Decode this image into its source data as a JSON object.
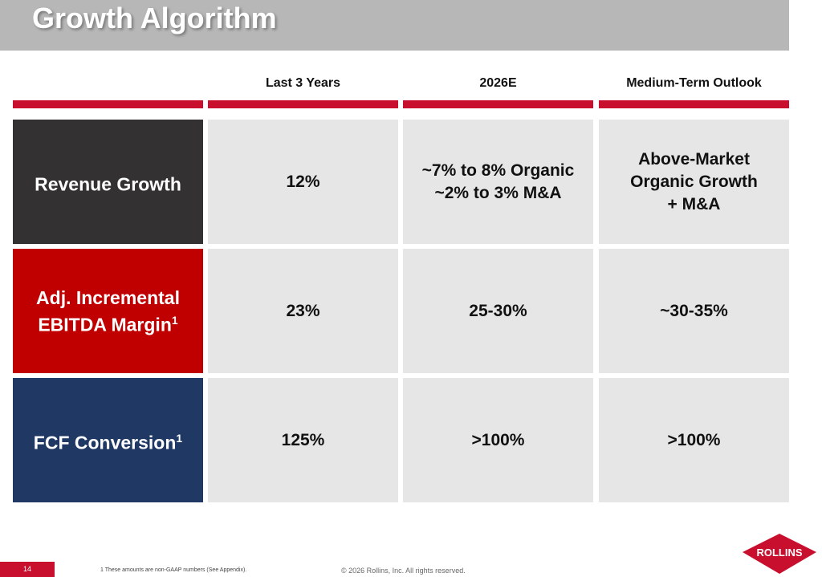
{
  "title": "Growth Algorithm",
  "columns": [
    "Last 3 Years",
    "2026E",
    "Medium-Term Outlook"
  ],
  "rows": [
    {
      "label": "Revenue Growth",
      "sup": "",
      "color": "#333132",
      "values": [
        [
          "12%"
        ],
        [
          "~7% to 8% Organic",
          "~2% to 3% M&A"
        ],
        [
          "Above-Market",
          "Organic Growth",
          "+ M&A"
        ]
      ]
    },
    {
      "label": "Adj. Incremental EBITDA Margin",
      "sup": "1",
      "color": "#c00000",
      "values": [
        [
          "23%"
        ],
        [
          "25-30%"
        ],
        [
          "~30-35%"
        ]
      ]
    },
    {
      "label": "FCF Conversion",
      "sup": "1",
      "color": "#1f3864",
      "values": [
        [
          "125%"
        ],
        [
          ">100%"
        ],
        [
          ">100%"
        ]
      ]
    }
  ],
  "footer": {
    "page": "14",
    "footnote": "1 These amounts are non-GAAP numbers (See Appendix).",
    "copyright": "© 2026 Rollins, Inc. All rights reserved.",
    "logo": "ROLLINS"
  }
}
